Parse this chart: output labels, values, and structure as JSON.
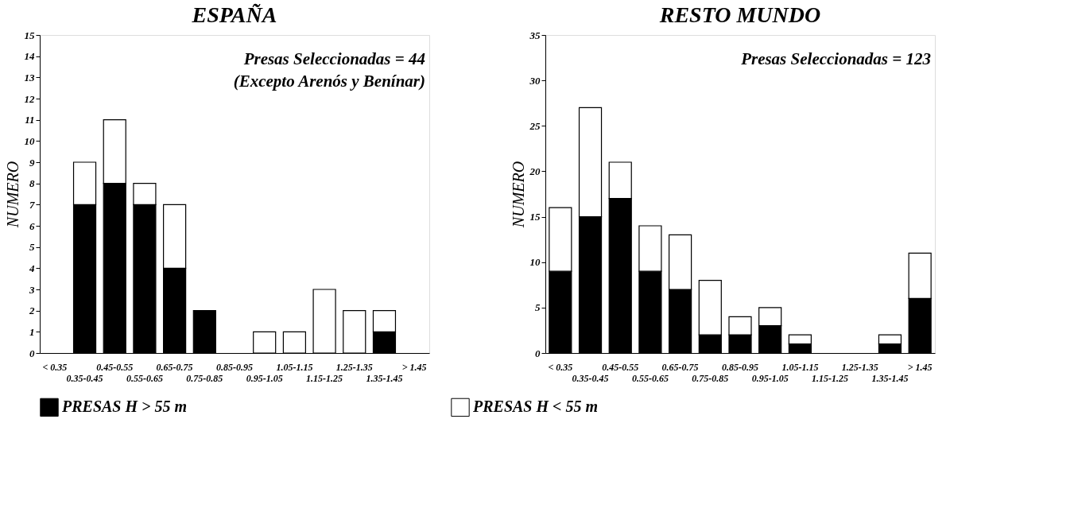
{
  "chart_data": [
    {
      "type": "bar",
      "stacked": true,
      "title": "ESPAÑA",
      "ylabel": "NUMERO",
      "categories": [
        "< 0.35",
        "0.35-0.45",
        "0.45-0.55",
        "0.55-0.65",
        "0.65-0.75",
        "0.75-0.85",
        "0.85-0.95",
        "0.95-1.05",
        "1.05-1.15",
        "1.15-1.25",
        "1.25-1.35",
        "1.35-1.45",
        "> 1.45"
      ],
      "series": [
        {
          "name": "PRESAS H > 55 m",
          "color": "#000000",
          "values": [
            0,
            7,
            8,
            7,
            4,
            2,
            0,
            0,
            0,
            0,
            0,
            1,
            0
          ]
        },
        {
          "name": "PRESAS H < 55 m",
          "color": "#ffffff",
          "values": [
            0,
            2,
            3,
            1,
            3,
            0,
            0,
            1,
            1,
            3,
            2,
            1,
            0
          ]
        }
      ],
      "ylim": [
        0,
        15
      ],
      "yticks": [
        0,
        1,
        2,
        3,
        4,
        5,
        6,
        7,
        8,
        9,
        10,
        11,
        12,
        13,
        14,
        15
      ],
      "grid": false,
      "legend": "bottom",
      "annotations": [
        "Presas Seleccionadas = 44",
        "(Excepto Arenós y Benínar)"
      ]
    },
    {
      "type": "bar",
      "stacked": true,
      "title": "RESTO MUNDO",
      "ylabel": "NUMERO",
      "categories": [
        "< 0.35",
        "0.35-0.45",
        "0.45-0.55",
        "0.55-0.65",
        "0.65-0.75",
        "0.75-0.85",
        "0.85-0.95",
        "0.95-1.05",
        "1.05-1.15",
        "1.15-1.25",
        "1.25-1.35",
        "1.35-1.45",
        "> 1.45"
      ],
      "series": [
        {
          "name": "PRESAS H > 55 m",
          "color": "#000000",
          "values": [
            9,
            15,
            17,
            9,
            7,
            2,
            2,
            3,
            1,
            0,
            0,
            1,
            6
          ]
        },
        {
          "name": "PRESAS H < 55 m",
          "color": "#ffffff",
          "values": [
            7,
            12,
            4,
            5,
            6,
            6,
            2,
            2,
            1,
            0,
            0,
            1,
            5
          ]
        }
      ],
      "ylim": [
        0,
        35
      ],
      "yticks": [
        0,
        5,
        10,
        15,
        20,
        25,
        30,
        35
      ],
      "grid": false,
      "legend": "bottom",
      "annotations": [
        "Presas Seleccionadas = 123"
      ]
    }
  ]
}
